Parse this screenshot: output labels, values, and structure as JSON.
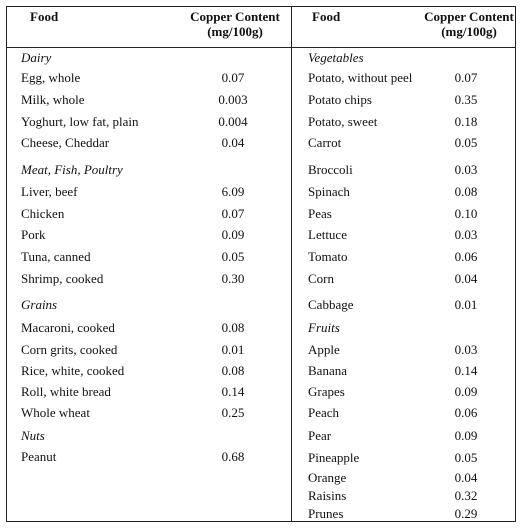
{
  "headers": {
    "food": "Food",
    "copper_line1": "Copper Content",
    "copper_line2": "(mg/100g)"
  },
  "left": [
    {
      "type": "cat",
      "label": "Dairy"
    },
    {
      "type": "row",
      "food": "Egg, whole",
      "value": "0.07"
    },
    {
      "type": "row",
      "food": "Milk, whole",
      "value": "0.003"
    },
    {
      "type": "row",
      "food": "Yoghurt, low fat, plain",
      "value": "0.004"
    },
    {
      "type": "row",
      "food": "Cheese, Cheddar",
      "value": "0.04"
    },
    {
      "type": "cat",
      "label": "Meat, Fish, Poultry"
    },
    {
      "type": "row",
      "food": "Liver, beef",
      "value": "6.09"
    },
    {
      "type": "row",
      "food": "Chicken",
      "value": "0.07"
    },
    {
      "type": "row",
      "food": "Pork",
      "value": "0.09"
    },
    {
      "type": "row",
      "food": "Tuna, canned",
      "value": "0.05"
    },
    {
      "type": "row",
      "food": "Shrimp, cooked",
      "value": "0.30"
    },
    {
      "type": "cat",
      "label": "Grains"
    },
    {
      "type": "row",
      "food": "Macaroni, cooked",
      "value": "0.08"
    },
    {
      "type": "row",
      "food": "Corn grits, cooked",
      "value": "0.01"
    },
    {
      "type": "row",
      "food": "Rice, white, cooked",
      "value": "0.08"
    },
    {
      "type": "row",
      "food": "Roll, white bread",
      "value": "0.14"
    },
    {
      "type": "row",
      "food": "Whole wheat",
      "value": "0.25"
    },
    {
      "type": "cat",
      "label": "Nuts"
    },
    {
      "type": "row",
      "food": "Peanut",
      "value": "0.68"
    }
  ],
  "right": [
    {
      "type": "cat",
      "label": "Vegetables"
    },
    {
      "type": "row",
      "food": "Potato, without peel",
      "value": "0.07"
    },
    {
      "type": "row",
      "food": "Potato chips",
      "value": "0.35"
    },
    {
      "type": "row",
      "food": "Potato, sweet",
      "value": "0.18"
    },
    {
      "type": "row",
      "food": "Carrot",
      "value": "0.05"
    },
    {
      "type": "row",
      "food": "Broccoli",
      "value": "0.03"
    },
    {
      "type": "row",
      "food": "Spinach",
      "value": "0.08"
    },
    {
      "type": "row",
      "food": "Peas",
      "value": "0.10"
    },
    {
      "type": "row",
      "food": "Lettuce",
      "value": "0.03"
    },
    {
      "type": "row",
      "food": "Tomato",
      "value": "0.06"
    },
    {
      "type": "row",
      "food": "Corn",
      "value": "0.04"
    },
    {
      "type": "row",
      "food": "Cabbage",
      "value": "0.01"
    },
    {
      "type": "cat",
      "label": "Fruits"
    },
    {
      "type": "row",
      "food": "Apple",
      "value": "0.03"
    },
    {
      "type": "row",
      "food": "Banana",
      "value": "0.14"
    },
    {
      "type": "row",
      "food": "Grapes",
      "value": "0.09"
    },
    {
      "type": "row",
      "food": "Peach",
      "value": "0.06"
    },
    {
      "type": "row",
      "food": "Pear",
      "value": "0.09"
    },
    {
      "type": "row",
      "food": "Pineapple",
      "value": "0.05"
    },
    {
      "type": "row",
      "food": "Orange",
      "value": "0.04"
    },
    {
      "type": "row",
      "food": "Raisins",
      "value": "0.32"
    },
    {
      "type": "row",
      "food": "Prunes",
      "value": "0.29"
    }
  ]
}
